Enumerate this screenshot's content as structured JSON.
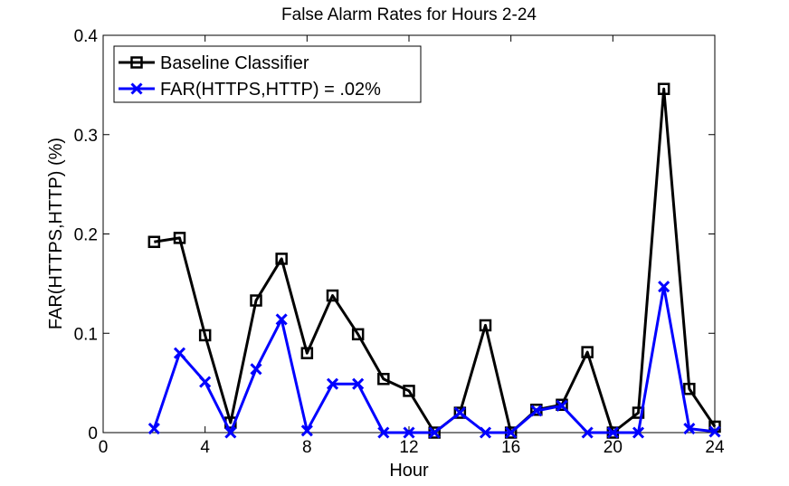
{
  "chart_data": {
    "type": "line",
    "title": "False Alarm Rates for Hours 2-24",
    "xlabel": "Hour",
    "ylabel": "FAR(HTTPS,HTTP) (%)",
    "xlim": [
      0,
      24
    ],
    "ylim": [
      0,
      0.4
    ],
    "xticks": [
      0,
      4,
      8,
      12,
      16,
      20,
      24
    ],
    "yticks": [
      0,
      0.1,
      0.2,
      0.3,
      0.4
    ],
    "xtick_labels": [
      "0",
      "4",
      "8",
      "12",
      "16",
      "20",
      "24"
    ],
    "ytick_labels": [
      "0",
      "0.1",
      "0.2",
      "0.3",
      "0.4"
    ],
    "grid": false,
    "legend_position": "top-left",
    "x": [
      2,
      3,
      4,
      5,
      6,
      7,
      8,
      9,
      10,
      11,
      12,
      13,
      14,
      15,
      16,
      17,
      18,
      19,
      20,
      21,
      22,
      23,
      24
    ],
    "series": [
      {
        "name": "Baseline Classifier",
        "color": "#000000",
        "marker": "square",
        "values": [
          0.192,
          0.196,
          0.098,
          0.01,
          0.133,
          0.175,
          0.08,
          0.138,
          0.099,
          0.054,
          0.042,
          0.0,
          0.02,
          0.108,
          0.0,
          0.023,
          0.028,
          0.081,
          0.0,
          0.02,
          0.346,
          0.044,
          0.006
        ]
      },
      {
        "name": "FAR(HTTPS,HTTP) = .02%",
        "color": "#0000ff",
        "marker": "x",
        "values": [
          0.004,
          0.08,
          0.051,
          0.0,
          0.064,
          0.114,
          0.002,
          0.049,
          0.049,
          0.0,
          0.0,
          0.0,
          0.02,
          0.0,
          0.0,
          0.022,
          0.027,
          0.0,
          0.0,
          0.0,
          0.147,
          0.004,
          0.001
        ]
      }
    ]
  }
}
